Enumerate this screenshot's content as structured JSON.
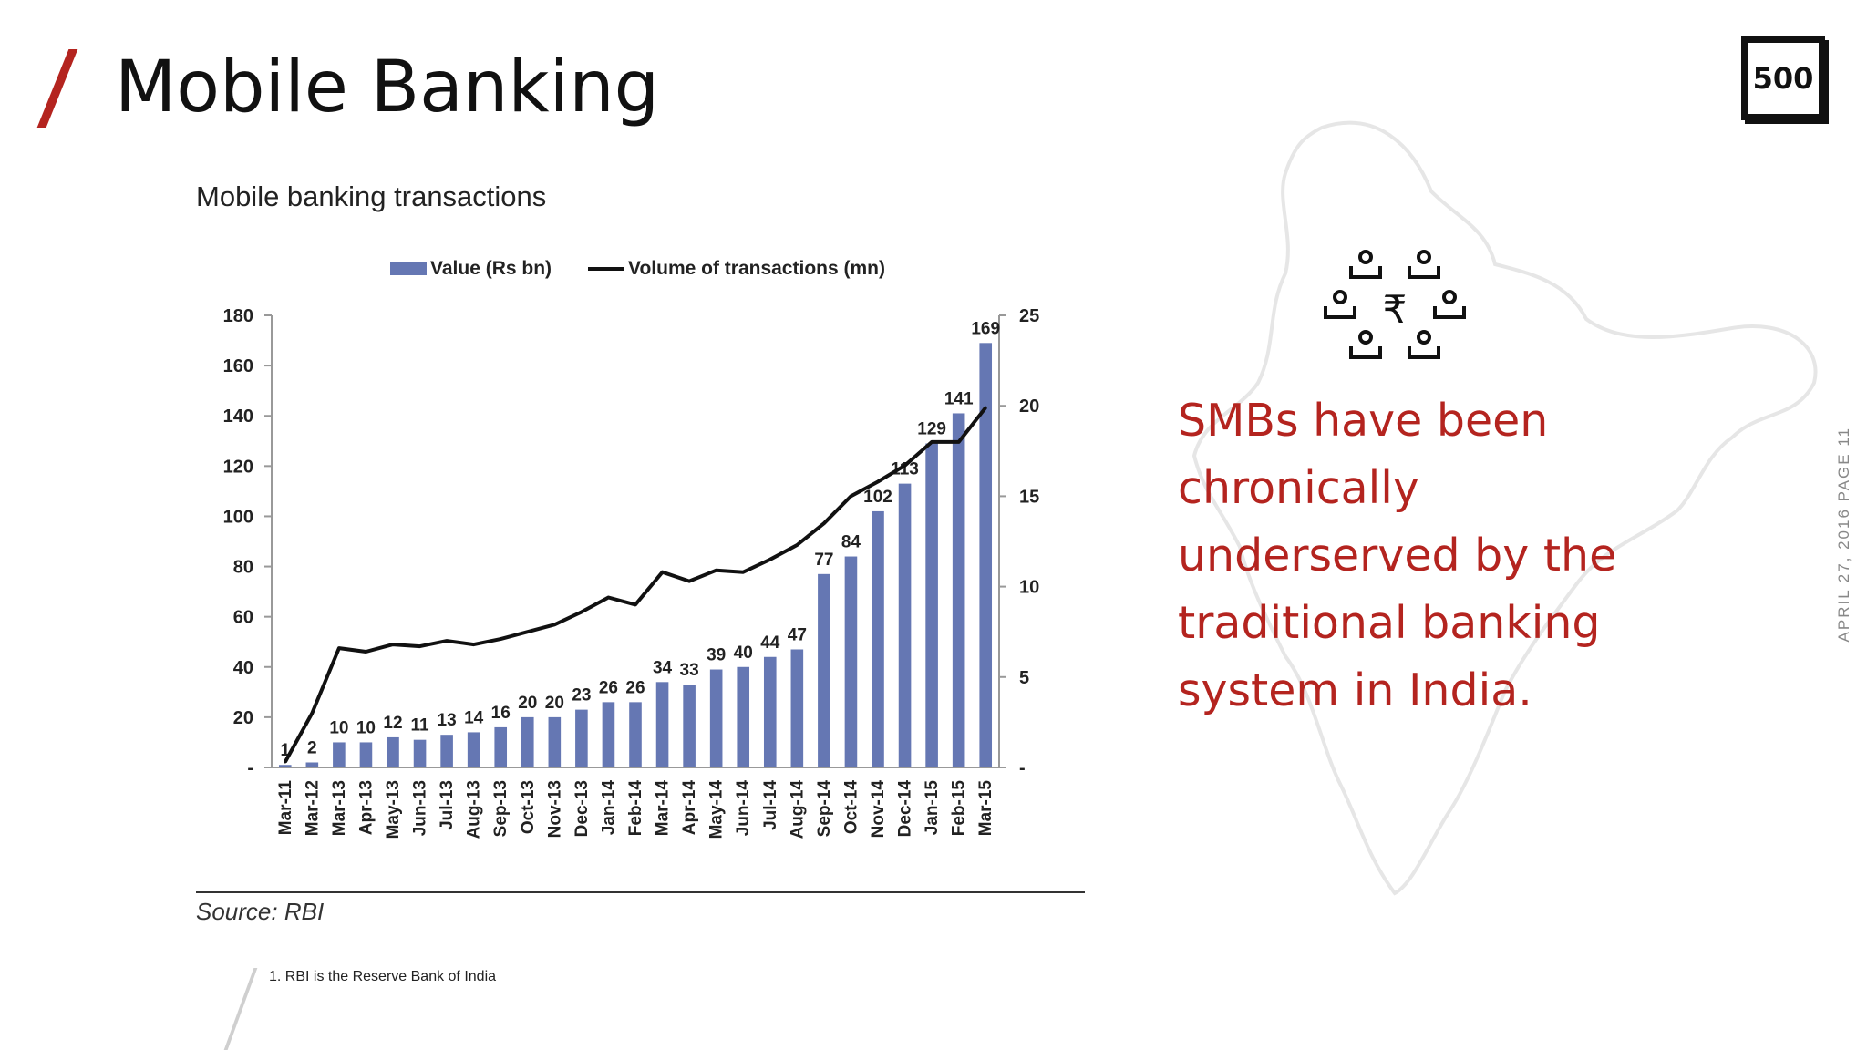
{
  "page": {
    "title": "Mobile Banking",
    "logo_text": "500",
    "side_note": "APRIL 27, 2016  PAGE 11",
    "headline": "SMBs have been chronically underserved by the traditional banking system in India.",
    "footnote": "1.  RBI is the Reserve Bank of India",
    "accent_color": "#b4241f",
    "icon": "people-rupee-network-icon",
    "background_image": "india-map-outline"
  },
  "chart_data": {
    "type": "bar",
    "title": "Mobile banking transactions",
    "source": "Source: RBI",
    "categories": [
      "Mar-11",
      "Mar-12",
      "Mar-13",
      "Apr-13",
      "May-13",
      "Jun-13",
      "Jul-13",
      "Aug-13",
      "Sep-13",
      "Oct-13",
      "Nov-13",
      "Dec-13",
      "Jan-14",
      "Feb-14",
      "Mar-14",
      "Apr-14",
      "May-14",
      "Jun-14",
      "Jul-14",
      "Aug-14",
      "Sep-14",
      "Oct-14",
      "Nov-14",
      "Dec-14",
      "Jan-15",
      "Feb-15",
      "Mar-15"
    ],
    "series": [
      {
        "name": "Value (Rs bn)",
        "type": "bar",
        "axis": "left",
        "color": "#6577b3",
        "values": [
          1,
          2,
          10,
          10,
          12,
          11,
          13,
          14,
          16,
          20,
          20,
          23,
          26,
          26,
          34,
          33,
          39,
          40,
          44,
          47,
          77,
          84,
          102,
          113,
          129,
          141,
          169
        ],
        "labels": [
          "1",
          "2",
          "10",
          "10",
          "12",
          "11",
          "13",
          "14",
          "16",
          "20",
          "20",
          "23",
          "26",
          "26",
          "34",
          "33",
          "39",
          "40",
          "44",
          "47",
          "77",
          "84",
          "102",
          "113",
          "129",
          "141",
          "169"
        ]
      },
      {
        "name": "Volume of transactions (mn)",
        "type": "line",
        "axis": "right",
        "color": "#111111",
        "values": [
          0.3,
          3,
          6.6,
          6.4,
          6.8,
          6.7,
          7,
          6.8,
          7.1,
          7.5,
          7.9,
          8.6,
          9.4,
          9,
          10.8,
          10.3,
          10.9,
          10.8,
          11.5,
          12.3,
          13.5,
          15,
          15.8,
          16.7,
          18,
          18,
          19.9
        ]
      }
    ],
    "y_left": {
      "min": 0,
      "max": 180,
      "ticks": [
        0,
        20,
        40,
        60,
        80,
        100,
        120,
        140,
        160,
        180
      ],
      "tick_labels": [
        "-",
        "20",
        "40",
        "60",
        "80",
        "100",
        "120",
        "140",
        "160",
        "180"
      ]
    },
    "y_right": {
      "min": 0,
      "max": 25,
      "ticks": [
        0,
        5,
        10,
        15,
        20,
        25
      ],
      "tick_labels": [
        "-",
        "5",
        "10",
        "15",
        "20",
        "25"
      ]
    },
    "legend": "top",
    "grid": false
  }
}
